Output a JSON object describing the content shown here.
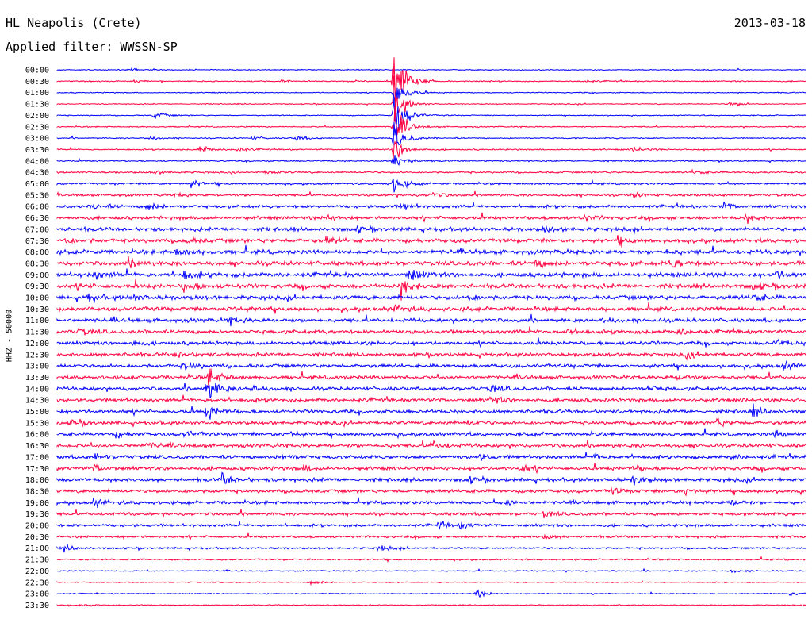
{
  "header": {
    "station": "HL Neapolis (Crete)",
    "date": "2013-03-18",
    "filter": "Applied filter: WWSSN-SP"
  },
  "colors": {
    "trace_a": "#0000ff",
    "trace_b": "#ff0040",
    "background": "#ffffff"
  },
  "chart_data": {
    "type": "helicorder",
    "ylabel": "HHZ - 50000",
    "row_labels": [
      "00:00",
      "00:30",
      "01:00",
      "01:30",
      "02:00",
      "02:30",
      "03:00",
      "03:30",
      "04:00",
      "04:30",
      "05:00",
      "05:30",
      "06:00",
      "06:30",
      "07:00",
      "07:30",
      "08:00",
      "08:30",
      "09:00",
      "09:30",
      "10:00",
      "10:30",
      "11:00",
      "11:30",
      "12:00",
      "12:30",
      "13:00",
      "13:30",
      "14:00",
      "14:30",
      "15:00",
      "15:30",
      "16:00",
      "16:30",
      "17:00",
      "17:30",
      "18:00",
      "18:30",
      "19:00",
      "19:30",
      "20:00",
      "20:30",
      "21:00",
      "21:30",
      "22:00",
      "22:30",
      "23:00",
      "23:30"
    ],
    "minutes_per_row": 30,
    "row_colors": [
      "blue",
      "red"
    ],
    "row_noise": [
      0.5,
      0.6,
      0.5,
      0.5,
      0.5,
      0.6,
      0.6,
      0.7,
      0.7,
      0.9,
      1.0,
      1.2,
      1.5,
      1.7,
      1.9,
      2.0,
      2.1,
      2.2,
      2.2,
      2.2,
      2.1,
      2.0,
      1.9,
      1.9,
      1.8,
      1.8,
      1.8,
      1.8,
      1.8,
      1.8,
      1.8,
      1.8,
      1.8,
      1.8,
      1.8,
      1.8,
      1.8,
      1.7,
      1.6,
      1.5,
      1.4,
      1.2,
      1.0,
      0.8,
      0.6,
      0.5,
      0.5,
      0.5
    ],
    "events": [
      {
        "row": 0,
        "t": 0.1,
        "amp": 1.3
      },
      {
        "row": 1,
        "t": 0.1,
        "amp": 1.4
      },
      {
        "row": 1,
        "t": 0.3,
        "amp": 1.6
      },
      {
        "row": 1,
        "t": 0.7,
        "amp": 1.4
      },
      {
        "row": 1,
        "t": 0.45,
        "amp": 45
      },
      {
        "row": 2,
        "t": 0.45,
        "amp": 18
      },
      {
        "row": 3,
        "t": 0.45,
        "amp": 22
      },
      {
        "row": 3,
        "t": 0.9,
        "amp": 4
      },
      {
        "row": 4,
        "t": 0.13,
        "amp": 4
      },
      {
        "row": 4,
        "t": 0.45,
        "amp": 28
      },
      {
        "row": 5,
        "t": 0.45,
        "amp": 22
      },
      {
        "row": 6,
        "t": 0.45,
        "amp": 16
      },
      {
        "row": 6,
        "t": 0.12,
        "amp": 2.5
      },
      {
        "row": 6,
        "t": 0.32,
        "amp": 2.5
      },
      {
        "row": 6,
        "t": 0.26,
        "amp": 2
      },
      {
        "row": 7,
        "t": 0.19,
        "amp": 4.5
      },
      {
        "row": 7,
        "t": 0.24,
        "amp": 3
      },
      {
        "row": 7,
        "t": 0.45,
        "amp": 14
      },
      {
        "row": 7,
        "t": 0.77,
        "amp": 3
      },
      {
        "row": 8,
        "t": 0.45,
        "amp": 10
      },
      {
        "row": 9,
        "t": 0.13,
        "amp": 2
      },
      {
        "row": 9,
        "t": 0.28,
        "amp": 2.5
      },
      {
        "row": 9,
        "t": 0.85,
        "amp": 2.5
      },
      {
        "row": 10,
        "t": 0.18,
        "amp": 4
      },
      {
        "row": 10,
        "t": 0.45,
        "amp": 9
      },
      {
        "row": 11,
        "t": 0.16,
        "amp": 2
      },
      {
        "row": 11,
        "t": 0.5,
        "amp": 3
      },
      {
        "row": 11,
        "t": 0.77,
        "amp": 3
      },
      {
        "row": 12,
        "t": 0.05,
        "amp": 4
      },
      {
        "row": 12,
        "t": 0.12,
        "amp": 4.5
      },
      {
        "row": 12,
        "t": 0.46,
        "amp": 3.5
      },
      {
        "row": 12,
        "t": 0.89,
        "amp": 4
      },
      {
        "row": 13,
        "t": 0.36,
        "amp": 3.5
      },
      {
        "row": 13,
        "t": 0.7,
        "amp": 3.5
      },
      {
        "row": 13,
        "t": 0.92,
        "amp": 4
      },
      {
        "row": 14,
        "t": 0.4,
        "amp": 3
      },
      {
        "row": 14,
        "t": 0.65,
        "amp": 3.5
      },
      {
        "row": 15,
        "t": 0.01,
        "amp": 3
      },
      {
        "row": 15,
        "t": 0.17,
        "amp": 3
      },
      {
        "row": 15,
        "t": 0.36,
        "amp": 3.5
      },
      {
        "row": 15,
        "t": 0.75,
        "amp": 4
      },
      {
        "row": 16,
        "t": 0.16,
        "amp": 4
      },
      {
        "row": 16,
        "t": 0.81,
        "amp": 3
      },
      {
        "row": 17,
        "t": 0.1,
        "amp": 3
      },
      {
        "row": 17,
        "t": 0.64,
        "amp": 4
      },
      {
        "row": 17,
        "t": 0.82,
        "amp": 5
      },
      {
        "row": 18,
        "t": 0.05,
        "amp": 3
      },
      {
        "row": 18,
        "t": 0.17,
        "amp": 5
      },
      {
        "row": 18,
        "t": 0.47,
        "amp": 8
      },
      {
        "row": 18,
        "t": 0.96,
        "amp": 4
      },
      {
        "row": 19,
        "t": 0.03,
        "amp": 2
      },
      {
        "row": 19,
        "t": 0.17,
        "amp": 7
      },
      {
        "row": 19,
        "t": 0.46,
        "amp": 10
      },
      {
        "row": 19,
        "t": 0.93,
        "amp": 3
      },
      {
        "row": 20,
        "t": 0.04,
        "amp": 4
      },
      {
        "row": 20,
        "t": 0.1,
        "amp": 3
      },
      {
        "row": 20,
        "t": 0.55,
        "amp": 3
      },
      {
        "row": 20,
        "t": 0.93,
        "amp": 4
      },
      {
        "row": 21,
        "t": 0.23,
        "amp": 3
      },
      {
        "row": 21,
        "t": 0.45,
        "amp": 4
      },
      {
        "row": 22,
        "t": 0.23,
        "amp": 3.5
      },
      {
        "row": 22,
        "t": 0.73,
        "amp": 2.5
      },
      {
        "row": 23,
        "t": 0.03,
        "amp": 3
      },
      {
        "row": 23,
        "t": 0.68,
        "amp": 3
      },
      {
        "row": 23,
        "t": 0.83,
        "amp": 3
      },
      {
        "row": 24,
        "t": 0.1,
        "amp": 2.5
      },
      {
        "row": 24,
        "t": 0.96,
        "amp": 3
      },
      {
        "row": 25,
        "t": 0.16,
        "amp": 3.5
      },
      {
        "row": 25,
        "t": 0.84,
        "amp": 3.5
      },
      {
        "row": 26,
        "t": 0.17,
        "amp": 5
      },
      {
        "row": 26,
        "t": 0.97,
        "amp": 5
      },
      {
        "row": 27,
        "t": 0.2,
        "amp": 12
      },
      {
        "row": 27,
        "t": 0.83,
        "amp": 3
      },
      {
        "row": 28,
        "t": 0.2,
        "amp": 13
      },
      {
        "row": 28,
        "t": 0.26,
        "amp": 3
      },
      {
        "row": 28,
        "t": 0.58,
        "amp": 3.5
      },
      {
        "row": 28,
        "t": 0.79,
        "amp": 3
      },
      {
        "row": 29,
        "t": 0.58,
        "amp": 3.5
      },
      {
        "row": 30,
        "t": 0.2,
        "amp": 8
      },
      {
        "row": 30,
        "t": 0.93,
        "amp": 5
      },
      {
        "row": 31,
        "t": 0.02,
        "amp": 3
      },
      {
        "row": 31,
        "t": 0.55,
        "amp": 2.5
      },
      {
        "row": 31,
        "t": 0.88,
        "amp": 4
      },
      {
        "row": 32,
        "t": 0.08,
        "amp": 3.5
      },
      {
        "row": 32,
        "t": 0.17,
        "amp": 3
      },
      {
        "row": 32,
        "t": 0.31,
        "amp": 4
      },
      {
        "row": 32,
        "t": 0.96,
        "amp": 3
      },
      {
        "row": 33,
        "t": 0.5,
        "amp": 4
      },
      {
        "row": 33,
        "t": 0.12,
        "amp": 2.5
      },
      {
        "row": 34,
        "t": 0.05,
        "amp": 4
      },
      {
        "row": 34,
        "t": 0.3,
        "amp": 4
      },
      {
        "row": 34,
        "t": 0.56,
        "amp": 4
      },
      {
        "row": 34,
        "t": 0.72,
        "amp": 4
      },
      {
        "row": 34,
        "t": 0.9,
        "amp": 3
      },
      {
        "row": 35,
        "t": 0.05,
        "amp": 3.5
      },
      {
        "row": 35,
        "t": 0.33,
        "amp": 3
      },
      {
        "row": 35,
        "t": 0.62,
        "amp": 4
      },
      {
        "row": 35,
        "t": 0.77,
        "amp": 3
      },
      {
        "row": 36,
        "t": 0.22,
        "amp": 6
      },
      {
        "row": 36,
        "t": 0.77,
        "amp": 5
      },
      {
        "row": 36,
        "t": 0.55,
        "amp": 3
      },
      {
        "row": 37,
        "t": 0.84,
        "amp": 3.5
      },
      {
        "row": 37,
        "t": 0.74,
        "amp": 3
      },
      {
        "row": 38,
        "t": 0.05,
        "amp": 5
      },
      {
        "row": 38,
        "t": 0.6,
        "amp": 3
      },
      {
        "row": 38,
        "t": 0.9,
        "amp": 3.5
      },
      {
        "row": 39,
        "t": 0.65,
        "amp": 3
      },
      {
        "row": 40,
        "t": 0.51,
        "amp": 3.5
      },
      {
        "row": 40,
        "t": 0.54,
        "amp": 3
      },
      {
        "row": 41,
        "t": 0.65,
        "amp": 3
      },
      {
        "row": 42,
        "t": 0.01,
        "amp": 3.5
      },
      {
        "row": 42,
        "t": 0.43,
        "amp": 3
      },
      {
        "row": 44,
        "t": 0.9,
        "amp": 1.8
      },
      {
        "row": 45,
        "t": 0.34,
        "amp": 3
      },
      {
        "row": 46,
        "t": 0.56,
        "amp": 4
      },
      {
        "row": 46,
        "t": 0.98,
        "amp": 1.8
      },
      {
        "row": 47,
        "t": 0.03,
        "amp": 1.8
      }
    ]
  }
}
